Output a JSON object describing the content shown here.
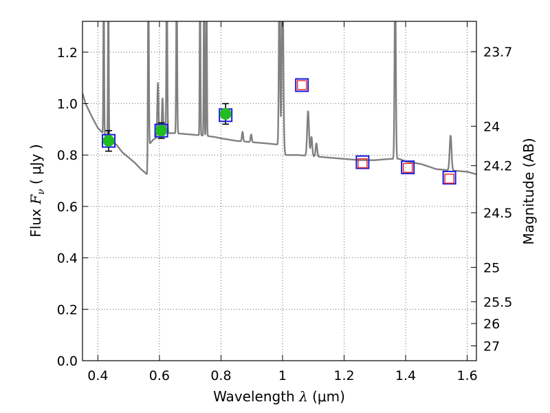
{
  "chart_data": {
    "type": "scatter",
    "title": "",
    "xlabel": {
      "prefix": "Wavelength  ",
      "symbol": "λ",
      "unit": " (μm)"
    },
    "ylabel": {
      "prefix": "Flux  ",
      "symbol": "F",
      "subscript": "ν",
      "unit": "  ( μJy )"
    },
    "y2label": "Magnitude (AB)",
    "xlim": [
      0.35,
      1.63
    ],
    "ylim": [
      0.0,
      1.32
    ],
    "grid": true,
    "x_ticks": [
      {
        "value": 0.4,
        "label": "0.4"
      },
      {
        "value": 0.6,
        "label": "0.6"
      },
      {
        "value": 0.8,
        "label": "0.8"
      },
      {
        "value": 1.0,
        "label": "1"
      },
      {
        "value": 1.2,
        "label": "1.2"
      },
      {
        "value": 1.4,
        "label": "1.4"
      },
      {
        "value": 1.6,
        "label": "1.6"
      }
    ],
    "y_ticks": [
      {
        "value": 0.0,
        "label": "0.0"
      },
      {
        "value": 0.2,
        "label": "0.2"
      },
      {
        "value": 0.4,
        "label": "0.4"
      },
      {
        "value": 0.6,
        "label": "0.6"
      },
      {
        "value": 0.8,
        "label": "0.8"
      },
      {
        "value": 1.0,
        "label": "1.0"
      },
      {
        "value": 1.2,
        "label": "1.2"
      }
    ],
    "magnitude_ticks": [
      {
        "mag": 23.7,
        "label": "23.7"
      },
      {
        "mag": 24.0,
        "label": "24"
      },
      {
        "mag": 24.2,
        "label": "24.2"
      },
      {
        "mag": 24.5,
        "label": "24.5"
      },
      {
        "mag": 25.0,
        "label": "25"
      },
      {
        "mag": 25.5,
        "label": "25.5"
      },
      {
        "mag": 26.0,
        "label": "26"
      },
      {
        "mag": 27.0,
        "label": "27"
      }
    ],
    "series": [
      {
        "kind": "model-spectrum",
        "color": "#808080",
        "continuum": [
          [
            0.35,
            1.04
          ],
          [
            0.36,
            1.0
          ],
          [
            0.38,
            0.95
          ],
          [
            0.4,
            0.905
          ],
          [
            0.42,
            0.88
          ],
          [
            0.44,
            0.855
          ],
          [
            0.46,
            0.84
          ],
          [
            0.48,
            0.81
          ],
          [
            0.5,
            0.79
          ],
          [
            0.52,
            0.77
          ],
          [
            0.54,
            0.745
          ],
          [
            0.555,
            0.73
          ],
          [
            0.562,
            0.72
          ],
          [
            0.566,
            0.84
          ],
          [
            0.58,
            0.86
          ],
          [
            0.6,
            0.875
          ],
          [
            0.62,
            0.885
          ],
          [
            0.65,
            0.885
          ],
          [
            0.7,
            0.88
          ],
          [
            0.75,
            0.875
          ],
          [
            0.78,
            0.87
          ],
          [
            0.8,
            0.865
          ],
          [
            0.85,
            0.855
          ],
          [
            0.9,
            0.85
          ],
          [
            0.95,
            0.845
          ],
          [
            0.99,
            0.84
          ],
          [
            1.0,
            0.84
          ],
          [
            1.01,
            0.8
          ],
          [
            1.03,
            0.8
          ],
          [
            1.05,
            0.8
          ],
          [
            1.1,
            0.795
          ],
          [
            1.15,
            0.79
          ],
          [
            1.2,
            0.785
          ],
          [
            1.25,
            0.78
          ],
          [
            1.3,
            0.78
          ],
          [
            1.35,
            0.785
          ],
          [
            1.38,
            0.785
          ],
          [
            1.4,
            0.775
          ],
          [
            1.45,
            0.765
          ],
          [
            1.5,
            0.745
          ],
          [
            1.55,
            0.74
          ],
          [
            1.6,
            0.735
          ],
          [
            1.63,
            0.725
          ]
        ],
        "lines": [
          {
            "x": 0.419,
            "peak": 1.5,
            "w": 0.0012
          },
          {
            "x": 0.434,
            "peak": 1.5,
            "w": 0.0012
          },
          {
            "x": 0.564,
            "peak": 1.5,
            "w": 0.0015
          },
          {
            "x": 0.595,
            "peak": 1.08,
            "w": 0.002
          },
          {
            "x": 0.61,
            "peak": 1.02,
            "w": 0.002
          },
          {
            "x": 0.624,
            "peak": 1.5,
            "w": 0.0015
          },
          {
            "x": 0.656,
            "peak": 1.5,
            "w": 0.0015
          },
          {
            "x": 0.732,
            "peak": 1.5,
            "w": 0.0012
          },
          {
            "x": 0.745,
            "peak": 1.5,
            "w": 0.0012
          },
          {
            "x": 0.753,
            "peak": 1.5,
            "w": 0.0012
          },
          {
            "x": 0.87,
            "peak": 0.89,
            "w": 0.002
          },
          {
            "x": 0.898,
            "peak": 0.88,
            "w": 0.002
          },
          {
            "x": 0.99,
            "peak": 1.5,
            "w": 0.002
          },
          {
            "x": 1.0,
            "peak": 1.5,
            "w": 0.0025
          },
          {
            "x": 1.083,
            "peak": 0.97,
            "w": 0.003
          },
          {
            "x": 1.094,
            "peak": 0.87,
            "w": 0.0025
          },
          {
            "x": 1.11,
            "peak": 0.845,
            "w": 0.0025
          },
          {
            "x": 1.366,
            "peak": 1.5,
            "w": 0.002
          },
          {
            "x": 1.546,
            "peak": 0.875,
            "w": 0.003
          }
        ]
      },
      {
        "kind": "observed-optical",
        "marker": "filled-circle",
        "color": "#22bb22",
        "x": [
          0.435,
          0.606,
          0.815
        ],
        "y": [
          0.855,
          0.895,
          0.96
        ],
        "err": [
          0.04,
          0.03,
          0.04
        ]
      },
      {
        "kind": "model-photometry",
        "marker": "open-square",
        "color": "#1a1adb",
        "x": [
          0.435,
          0.606,
          0.815,
          1.063,
          1.26,
          1.407,
          1.542
        ],
        "y": [
          0.855,
          0.895,
          0.955,
          1.072,
          0.772,
          0.752,
          0.712
        ]
      },
      {
        "kind": "infrared-points",
        "marker": "open-square",
        "color": "#ee2222",
        "x": [
          1.063,
          1.26,
          1.407,
          1.542
        ],
        "y": [
          1.072,
          0.768,
          0.75,
          0.708
        ]
      }
    ]
  }
}
